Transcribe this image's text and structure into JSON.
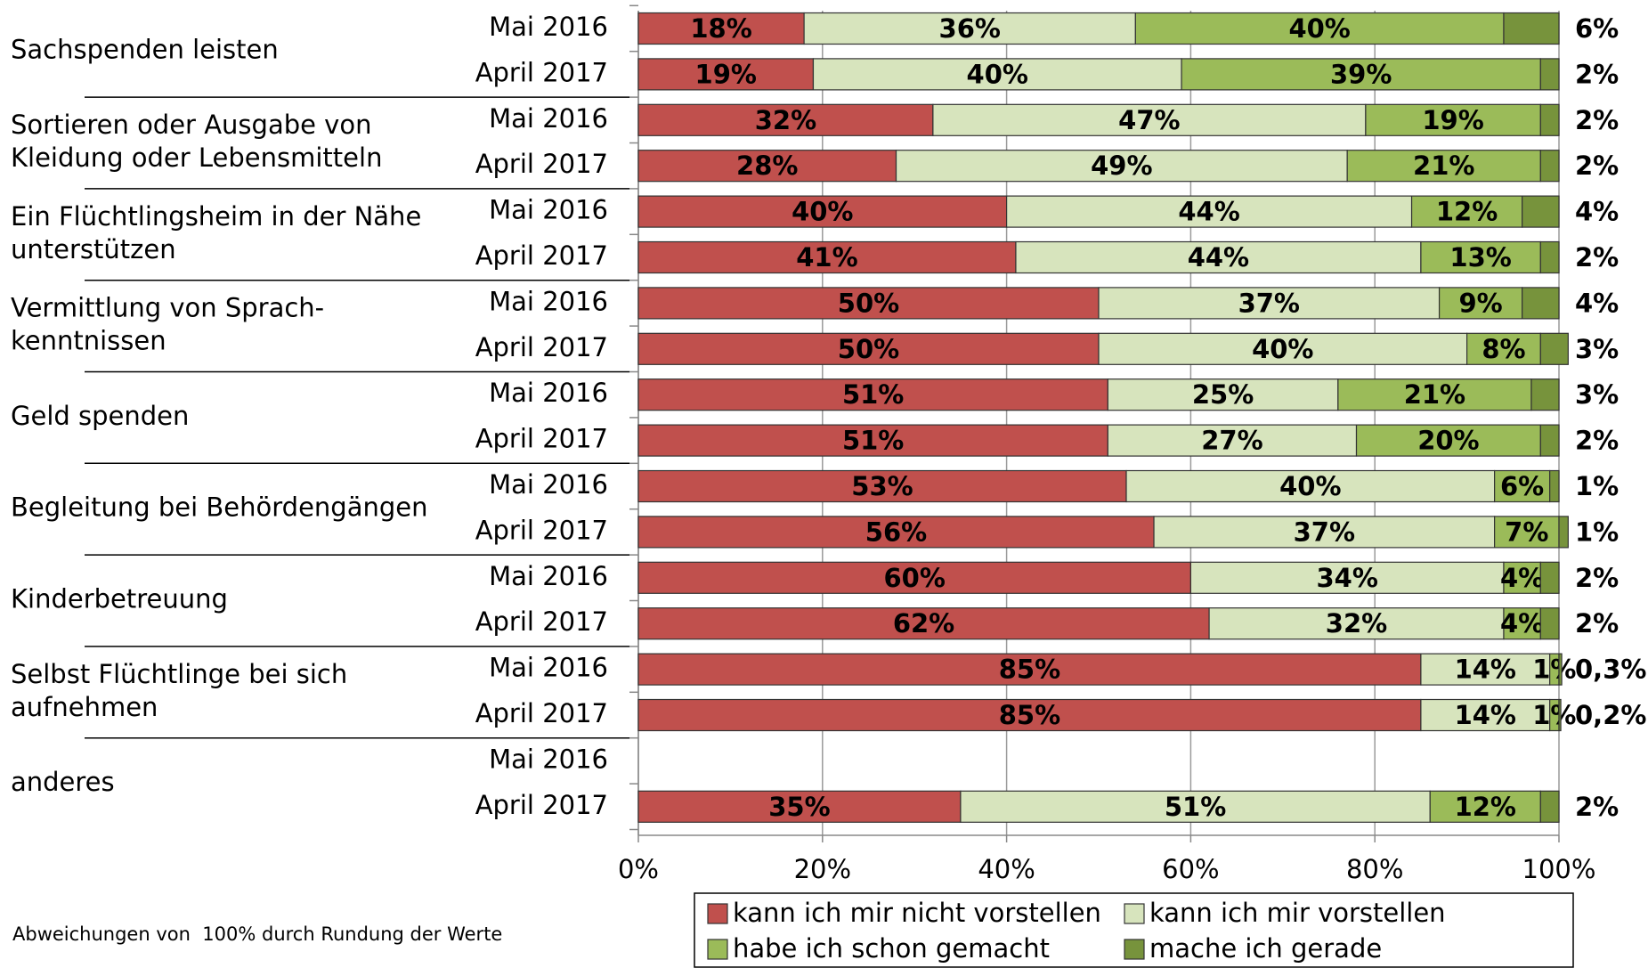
{
  "chart_data": {
    "type": "stacked_bar",
    "groups": [
      [
        "Sachspenden leisten"
      ],
      [
        "Sortieren oder Ausgabe von",
        "Kleidung oder Lebensmitteln"
      ],
      [
        "Ein Flüchtlingsheim in der Nähe",
        "unterstützen"
      ],
      [
        "Vermittlung von Sprach-",
        "kenntnissen"
      ],
      [
        "Geld spenden"
      ],
      [
        "Begleitung bei Behördengängen"
      ],
      [
        "Kinderbetreuung"
      ],
      [
        "Selbst Flüchtlinge bei sich",
        "aufnehmen"
      ],
      [
        "anderes"
      ]
    ],
    "categories": [
      "Mai 2016",
      "April 2017",
      "Mai 2016",
      "April 2017",
      "Mai 2016",
      "April 2017",
      "Mai 2016",
      "April 2017",
      "Mai 2016",
      "April 2017",
      "Mai 2016",
      "April 2017",
      "Mai 2016",
      "April 2017",
      "Mai 2016",
      "April 2017",
      "Mai 2016",
      "April 2017"
    ],
    "series": [
      {
        "name": "kann ich mir nicht vorstellen",
        "color": "#c0504d",
        "values": [
          18,
          19,
          32,
          28,
          40,
          41,
          50,
          50,
          51,
          51,
          53,
          56,
          60,
          62,
          85,
          85,
          null,
          35
        ],
        "value_labels": [
          "18%",
          "19%",
          "32%",
          "28%",
          "40%",
          "41%",
          "50%",
          "50%",
          "51%",
          "51%",
          "53%",
          "56%",
          "60%",
          "62%",
          "85%",
          "85%",
          null,
          "35%"
        ]
      },
      {
        "name": "kann ich mir vorstellen",
        "color": "#d7e4bd",
        "values": [
          36,
          40,
          47,
          49,
          44,
          44,
          37,
          40,
          25,
          27,
          40,
          37,
          34,
          32,
          14,
          14,
          null,
          51
        ],
        "value_labels": [
          "36%",
          "40%",
          "47%",
          "49%",
          "44%",
          "44%",
          "37%",
          "40%",
          "25%",
          "27%",
          "40%",
          "37%",
          "34%",
          "32%",
          "14%",
          "14%",
          null,
          "51%"
        ]
      },
      {
        "name": "habe ich schon gemacht",
        "color": "#9bbb59",
        "values": [
          40,
          39,
          19,
          21,
          12,
          13,
          9,
          8,
          21,
          20,
          6,
          7,
          4,
          4,
          1,
          1,
          null,
          12
        ],
        "value_labels": [
          "40%",
          "39%",
          "19%",
          "21%",
          "12%",
          "13%",
          "9%",
          "8%",
          "21%",
          "20%",
          "6%",
          "7%",
          "4%",
          "4%",
          "1%",
          "1%",
          null,
          "12%"
        ]
      },
      {
        "name": "mache ich gerade",
        "color": "#77933c",
        "values": [
          6,
          2,
          2,
          2,
          4,
          2,
          4,
          3,
          3,
          2,
          1,
          1,
          2,
          2,
          0.3,
          0.2,
          null,
          2
        ],
        "value_labels": [
          "6%",
          "2%",
          "2%",
          "2%",
          "4%",
          "2%",
          "4%",
          "3%",
          "3%",
          "2%",
          "1%",
          "1%",
          "2%",
          "2%",
          "0,3%",
          "0,2%",
          null,
          "2%"
        ]
      }
    ],
    "xlim": [
      0,
      100
    ],
    "xticks": [
      {
        "value": 0,
        "label": "0%"
      },
      {
        "value": 20,
        "label": "20%"
      },
      {
        "value": 40,
        "label": "40%"
      },
      {
        "value": 60,
        "label": "60%"
      },
      {
        "value": 80,
        "label": "80%"
      },
      {
        "value": 100,
        "label": "100%"
      }
    ],
    "grid": true,
    "legend": "bottom",
    "annotation": "Abweichungen von  100% durch Rundung der Werte"
  }
}
